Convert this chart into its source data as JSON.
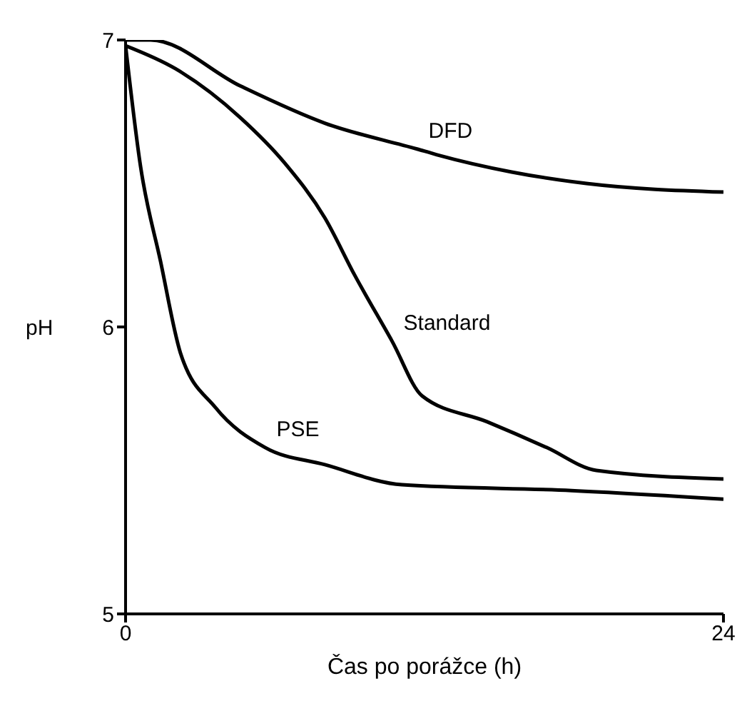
{
  "chart_data": {
    "type": "line",
    "xlabel": "Čas po porážce (h)",
    "ylabel": "pH",
    "xlim": [
      0,
      24
    ],
    "xticks": [
      0,
      24
    ],
    "ylim": [
      5,
      7
    ],
    "yticks": [
      5,
      6,
      7
    ],
    "grid": false,
    "legend": false,
    "marker": "none",
    "line_style": "solid",
    "series": [
      {
        "name": "DFD",
        "color": "#000000",
        "x": [
          0,
          1,
          4.6,
          8,
          11.7,
          12.5,
          15.5,
          18.5,
          24
        ],
        "values": [
          7.0,
          7.0,
          6.84,
          6.71,
          6.62,
          6.6,
          6.54,
          6.5,
          6.47
        ]
      },
      {
        "name": "Standard",
        "color": "#000000",
        "x": [
          0,
          2,
          4.6,
          6.4,
          8,
          9.2,
          10.7,
          11.9,
          14.5,
          16.9,
          18.9,
          24
        ],
        "values": [
          6.98,
          6.9,
          6.73,
          6.57,
          6.38,
          6.18,
          5.95,
          5.76,
          5.67,
          5.58,
          5.5,
          5.47
        ]
      },
      {
        "name": "PSE",
        "color": "#000000",
        "x": [
          0,
          0.6,
          1.4,
          2.2,
          3.6,
          5.6,
          8,
          11.1,
          17.9,
          24
        ],
        "values": [
          6.98,
          6.56,
          6.23,
          5.91,
          5.72,
          5.58,
          5.52,
          5.45,
          5.43,
          5.4
        ]
      }
    ]
  }
}
